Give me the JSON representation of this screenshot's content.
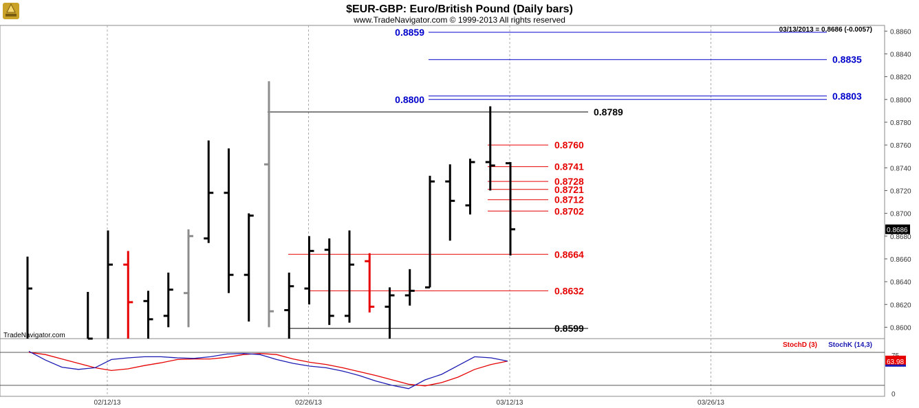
{
  "header": {
    "title": "$EUR-GBP:  Euro/British Pound  (Daily bars)",
    "subtitle": "www.TradeNavigator.com © 1999-2013 All rights reserved",
    "last_quote": "03/13/2013 = 0.8686 (-0.0057)",
    "watermark": "TradeNavigator.com"
  },
  "colors": {
    "bar_up": "#000000",
    "bar_down": "#e60000",
    "bar_gray": "#8c8c8c",
    "blue_level": "#0000cc",
    "red_level": "#e60000",
    "black_level": "#000000",
    "stoch_d": "#e60000",
    "stoch_k": "#1a1ab3"
  },
  "icons": {
    "logo": "trade-navigator-logo-icon"
  },
  "chart_data": [
    {
      "type": "ohlc",
      "instrument": "EUR-GBP",
      "ylim": [
        0.859,
        0.8865
      ],
      "yticks": [
        0.86,
        0.862,
        0.864,
        0.866,
        0.868,
        0.87,
        0.872,
        0.874,
        0.876,
        0.878,
        0.88,
        0.882,
        0.884,
        0.886
      ],
      "ytick_labels": [
        "0.8600",
        "0.8620",
        "0.8640",
        "0.8660",
        "0.8680",
        "0.8700",
        "0.8720",
        "0.8740",
        "0.8760",
        "0.8780",
        "0.8800",
        "0.8820",
        "0.8840",
        "0.8860"
      ],
      "price_marker": "0.8686",
      "x_date_labels": [
        {
          "label": "02/12/13",
          "index": 4
        },
        {
          "label": "02/26/13",
          "index": 14
        },
        {
          "label": "03/12/13",
          "index": 24
        },
        {
          "label": "03/26/13",
          "index": 34
        }
      ],
      "bars": [
        {
          "date": "02/06/13",
          "high": 0.8662,
          "low": 0.859,
          "close": 0.8634,
          "color": "black"
        },
        {
          "date": "02/11/13",
          "high": 0.8631,
          "low": 0.859,
          "close": 0.859,
          "color": "black"
        },
        {
          "date": "02/12/13",
          "high": 0.8685,
          "low": 0.859,
          "close": 0.8655,
          "color": "black"
        },
        {
          "date": "02/13/13",
          "high": 0.8667,
          "low": 0.859,
          "open": 0.8655,
          "close": 0.8622,
          "color": "red"
        },
        {
          "date": "02/14/13",
          "high": 0.8632,
          "low": 0.859,
          "open": 0.8623,
          "close": 0.8607,
          "color": "black"
        },
        {
          "date": "02/15/13",
          "high": 0.8648,
          "low": 0.86,
          "open": 0.861,
          "close": 0.8633,
          "color": "black"
        },
        {
          "date": "02/18/13",
          "high": 0.8686,
          "low": 0.86,
          "open": 0.863,
          "close": 0.868,
          "color": "gray"
        },
        {
          "date": "02/19/13",
          "high": 0.8764,
          "low": 0.8674,
          "open": 0.8678,
          "close": 0.8718,
          "color": "black"
        },
        {
          "date": "02/20/13",
          "high": 0.8757,
          "low": 0.863,
          "open": 0.8718,
          "close": 0.8646,
          "color": "black"
        },
        {
          "date": "02/21/13",
          "high": 0.87,
          "low": 0.8605,
          "open": 0.8646,
          "close": 0.8698,
          "color": "black"
        },
        {
          "date": "02/22/13",
          "high": 0.8816,
          "low": 0.86,
          "open": 0.8743,
          "close": 0.8614,
          "color": "gray"
        },
        {
          "date": "02/25/13",
          "high": 0.8648,
          "low": 0.859,
          "open": 0.8615,
          "close": 0.8636,
          "color": "black"
        },
        {
          "date": "02/26/13",
          "high": 0.868,
          "low": 0.862,
          "open": 0.8634,
          "close": 0.8667,
          "color": "black"
        },
        {
          "date": "02/27/13",
          "high": 0.8678,
          "low": 0.8602,
          "open": 0.8668,
          "close": 0.861,
          "color": "black"
        },
        {
          "date": "02/28/13",
          "high": 0.8685,
          "low": 0.8604,
          "open": 0.861,
          "close": 0.8655,
          "color": "black"
        },
        {
          "date": "03/01/13",
          "high": 0.8665,
          "low": 0.8613,
          "open": 0.8658,
          "close": 0.8618,
          "color": "red"
        },
        {
          "date": "03/04/13",
          "high": 0.8635,
          "low": 0.859,
          "open": 0.8618,
          "close": 0.8628,
          "color": "black"
        },
        {
          "date": "03/05/13",
          "high": 0.8651,
          "low": 0.8619,
          "open": 0.8628,
          "close": 0.8632,
          "color": "black"
        },
        {
          "date": "03/06/13",
          "high": 0.8733,
          "low": 0.8635,
          "open": 0.8635,
          "close": 0.8728,
          "color": "black"
        },
        {
          "date": "03/07/13",
          "high": 0.8743,
          "low": 0.8676,
          "open": 0.8728,
          "close": 0.8711,
          "color": "black"
        },
        {
          "date": "03/08/13",
          "high": 0.8748,
          "low": 0.8699,
          "open": 0.8707,
          "close": 0.8745,
          "color": "black"
        },
        {
          "date": "03/11/13",
          "high": 0.8794,
          "low": 0.872,
          "open": 0.8745,
          "close": 0.8742,
          "color": "black"
        },
        {
          "date": "03/12/13",
          "high": 0.8745,
          "low": 0.8663,
          "open": 0.8744,
          "close": 0.8686,
          "color": "black"
        }
      ],
      "levels_blue": [
        {
          "label": "0.8859",
          "value": 0.8859,
          "label_side": "left"
        },
        {
          "label": "0.8835",
          "value": 0.8835,
          "label_side": "right"
        },
        {
          "label": "0.8800",
          "value": 0.88,
          "label_side": "left"
        },
        {
          "label": "0.8803",
          "value": 0.8803,
          "label_side": "right"
        }
      ],
      "levels_red": [
        {
          "label": "0.8760",
          "value": 0.876
        },
        {
          "label": "0.8741",
          "value": 0.8741
        },
        {
          "label": "0.8728",
          "value": 0.8728
        },
        {
          "label": "0.8721",
          "value": 0.8721
        },
        {
          "label": "0.8712",
          "value": 0.8712
        },
        {
          "label": "0.8702",
          "value": 0.8702
        },
        {
          "label": "0.8664",
          "value": 0.8664
        },
        {
          "label": "0.8632",
          "value": 0.8632
        }
      ],
      "levels_black": [
        {
          "label": "0.8789",
          "value": 0.8789
        },
        {
          "label": "0.8599",
          "value": 0.8599
        }
      ]
    },
    {
      "type": "line",
      "indicator": "Stochastic",
      "ylim": [
        0,
        100
      ],
      "yticks_labels": [
        {
          "label": "75",
          "value": 75
        },
        {
          "label": "0",
          "value": 0
        }
      ],
      "reference_lines": [
        80,
        20
      ],
      "value_marker": "63.98",
      "series": [
        {
          "name": "StochD (3)",
          "color": "red",
          "values": [
            80,
            76,
            68,
            60,
            52,
            47,
            50,
            56,
            61,
            67,
            68,
            68,
            71,
            76,
            78,
            76,
            68,
            62,
            58,
            52,
            45,
            38,
            30,
            22,
            19,
            25,
            35,
            49,
            58,
            63.98
          ]
        },
        {
          "name": "StochK (14,3)",
          "color": "blue",
          "values": [
            82,
            66,
            53,
            49,
            52,
            67,
            70,
            72,
            72,
            70,
            69,
            72,
            77,
            78,
            76,
            67,
            60,
            55,
            52,
            46,
            38,
            28,
            20,
            14,
            30,
            40,
            56,
            72,
            70,
            63.98
          ]
        }
      ]
    }
  ]
}
